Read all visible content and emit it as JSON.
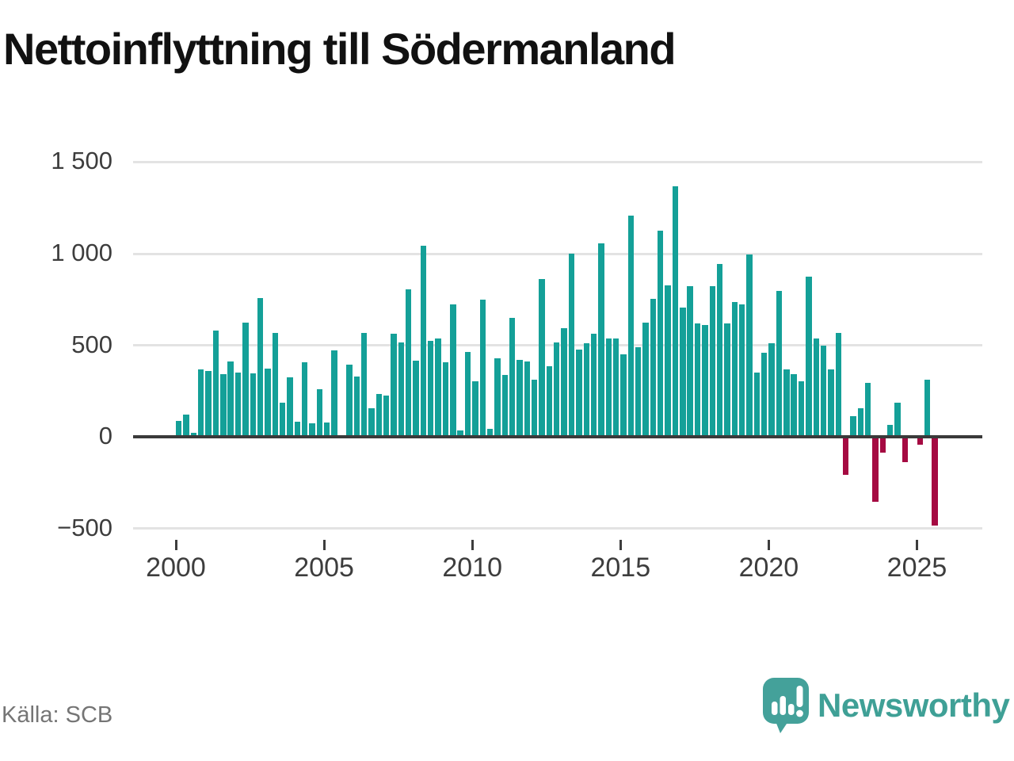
{
  "title": "Nettoinflyttning till Södermanland",
  "source": "Källa: SCB",
  "brand": {
    "name": "Newsworthy",
    "icon": "speech-bubble-bar-chart-icon",
    "color": "#3fa096"
  },
  "colors": {
    "positive_bar": "#14a098",
    "negative_bar": "#a50a42",
    "gridline": "#e3e3e3",
    "zero_line": "#3a3a3a",
    "axis_text": "#3d3d3d",
    "title_text": "#111111",
    "source_text": "#757575"
  },
  "chart_data": {
    "type": "bar",
    "title": "Nettoinflyttning till Södermanland",
    "period": "quarterly",
    "start": "2000Q1",
    "end": "2025Q3",
    "ylim": [
      -540,
      1540
    ],
    "grid": true,
    "legend": "none",
    "y_ticks": [
      {
        "v": 1500,
        "label": "1 500"
      },
      {
        "v": 1000,
        "label": "1 000"
      },
      {
        "v": 500,
        "label": "500"
      },
      {
        "v": 0,
        "label": "0"
      },
      {
        "v": -500,
        "label": "−500"
      }
    ],
    "x_ticks": [
      {
        "year": 2000,
        "label": "2000"
      },
      {
        "year": 2005,
        "label": "2005"
      },
      {
        "year": 2010,
        "label": "2010"
      },
      {
        "year": 2015,
        "label": "2015"
      },
      {
        "year": 2020,
        "label": "2020"
      },
      {
        "year": 2025,
        "label": "2025"
      }
    ],
    "values": [
      87,
      123,
      22,
      370,
      359,
      580,
      341,
      413,
      351,
      626,
      345,
      757,
      374,
      568,
      186,
      327,
      83,
      409,
      75,
      261,
      77,
      474,
      0,
      394,
      329,
      568,
      155,
      235,
      227,
      562,
      517,
      807,
      416,
      1043,
      524,
      536,
      409,
      722,
      36,
      464,
      304,
      749,
      43,
      430,
      340,
      652,
      420,
      413,
      311,
      862,
      387,
      517,
      594,
      1000,
      478,
      510,
      565,
      1058,
      536,
      539,
      449,
      1206,
      488,
      626,
      753,
      1126,
      826,
      1369,
      706,
      822,
      619,
      609,
      822,
      942,
      619,
      735,
      725,
      995,
      351,
      461,
      511,
      797,
      368,
      341,
      305,
      874,
      537,
      500,
      370,
      566,
      -208,
      115,
      155,
      296,
      -355,
      -86,
      65,
      185,
      -137,
      0,
      -43,
      313,
      -483
    ]
  }
}
